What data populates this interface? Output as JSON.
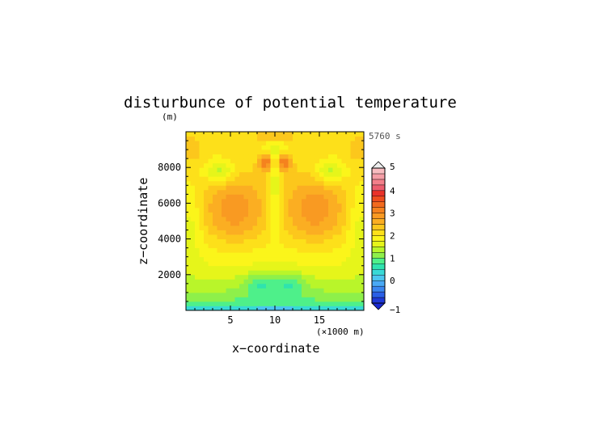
{
  "chart_data": {
    "type": "heatmap",
    "title": "disturbunce of potential temperature",
    "units_label": "(m)",
    "time_label": "5760 s",
    "xlabel": "x−coordinate",
    "ylabel": "z−coordinate",
    "x_unit_label": "(×1000 m)",
    "xlim": [
      0,
      20
    ],
    "ylim": [
      0,
      10000
    ],
    "x_ticks": [
      {
        "value": 5,
        "label": "5"
      },
      {
        "value": 10,
        "label": "10"
      },
      {
        "value": 15,
        "label": "15"
      }
    ],
    "y_ticks": [
      {
        "value": 2000,
        "label": "2000"
      },
      {
        "value": 4000,
        "label": "4000"
      },
      {
        "value": 6000,
        "label": "6000"
      },
      {
        "value": 8000,
        "label": "8000"
      }
    ],
    "colorbar": {
      "min": -1,
      "max": 5,
      "levels": [
        -1,
        -0.75,
        -0.5,
        -0.25,
        0,
        0.25,
        0.5,
        0.75,
        1,
        1.25,
        1.5,
        1.75,
        2,
        2.25,
        2.5,
        2.75,
        3,
        3.25,
        3.5,
        3.75,
        4,
        4.25,
        4.5,
        4.75,
        5
      ],
      "colors": [
        "#1f39d6",
        "#2a5fe6",
        "#3a86f0",
        "#49a9f5",
        "#4bc6f0",
        "#38d9d6",
        "#2fe3ae",
        "#4ef08a",
        "#8ef04a",
        "#b9f52a",
        "#e6f51a",
        "#fbf51a",
        "#fde01a",
        "#fcc71c",
        "#fbae22",
        "#f99a22",
        "#f5821e",
        "#f26a1e",
        "#ef4d1e",
        "#e9322a",
        "#ed5d6e",
        "#f27f8a",
        "#f59ea6",
        "#f8bcc0"
      ],
      "tick_labels": [
        {
          "value": -1,
          "label": "−1"
        },
        {
          "value": 0,
          "label": "0"
        },
        {
          "value": 1,
          "label": "1"
        },
        {
          "value": 2,
          "label": "2"
        },
        {
          "value": 3,
          "label": "3"
        },
        {
          "value": 4,
          "label": "4"
        },
        {
          "value": 5,
          "label": "5"
        }
      ]
    },
    "nx": 40,
    "nz": 40,
    "axis_color": "#000000",
    "grid": false
  }
}
